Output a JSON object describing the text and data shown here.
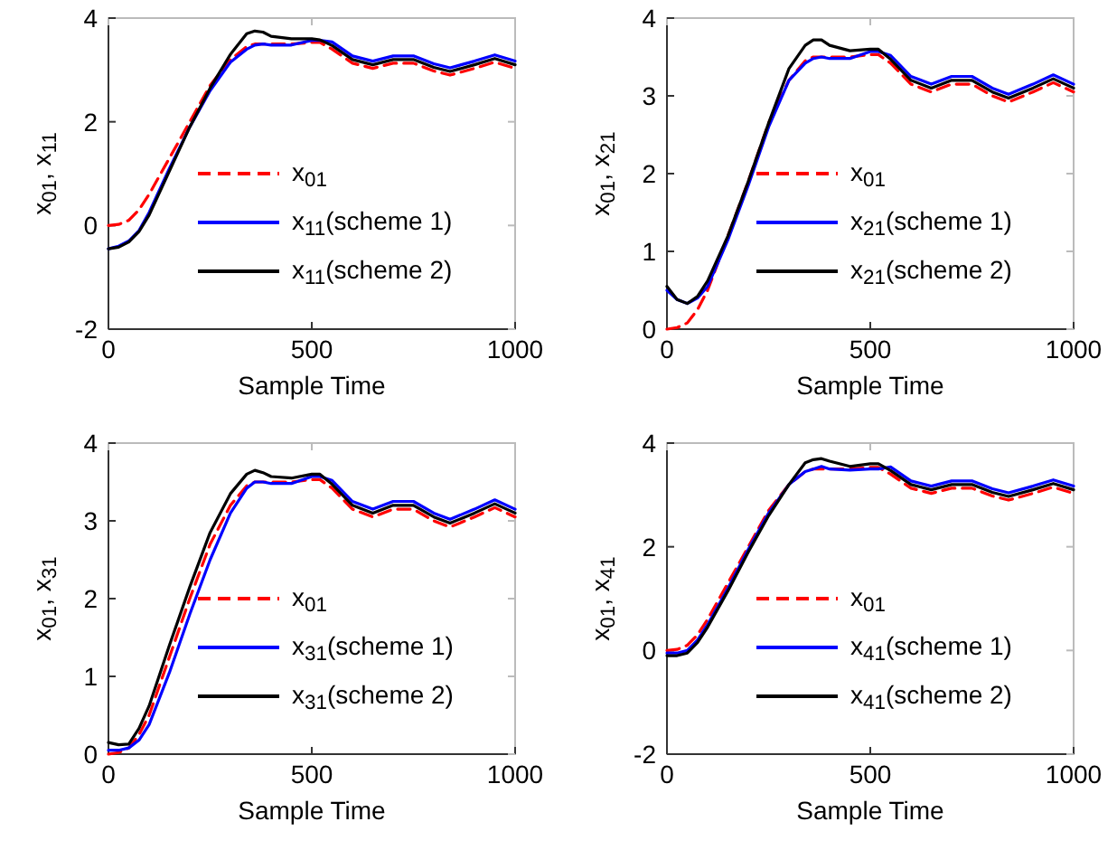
{
  "chart_data": [
    {
      "type": "line",
      "xlabel": "Sample Time",
      "ylabel": "x$_{01}$, x$_{11}$",
      "xlim": [
        0,
        1000
      ],
      "xticks": [
        0,
        500,
        1000
      ],
      "ylim": [
        -2,
        4
      ],
      "yticks": [
        -2,
        0,
        2,
        4
      ],
      "legend": "right",
      "grid": false,
      "x": [
        0,
        25,
        50,
        75,
        100,
        150,
        200,
        250,
        300,
        340,
        360,
        380,
        400,
        450,
        500,
        520,
        550,
        600,
        650,
        700,
        750,
        800,
        840,
        900,
        950,
        1000
      ],
      "series": [
        {
          "name": "x$_{01}$",
          "color": "#ff0000",
          "line_style": "dashed",
          "values": [
            0,
            0.02,
            0.1,
            0.3,
            0.6,
            1.3,
            2.0,
            2.7,
            3.2,
            3.45,
            3.5,
            3.5,
            3.5,
            3.5,
            3.53,
            3.53,
            3.4,
            3.13,
            3.03,
            3.13,
            3.13,
            2.98,
            2.9,
            3.03,
            3.15,
            3.03
          ]
        },
        {
          "name": "x$_{11}$(scheme 1)",
          "color": "#0000ff",
          "line_style": "solid",
          "values": [
            -0.45,
            -0.4,
            -0.3,
            -0.1,
            0.25,
            1.1,
            1.9,
            2.6,
            3.15,
            3.4,
            3.48,
            3.5,
            3.48,
            3.48,
            3.57,
            3.57,
            3.54,
            3.27,
            3.17,
            3.27,
            3.27,
            3.12,
            3.04,
            3.17,
            3.29,
            3.17
          ]
        },
        {
          "name": "x$_{11}$(scheme 2)",
          "color": "#000000",
          "line_style": "solid",
          "values": [
            -0.45,
            -0.42,
            -0.32,
            -0.12,
            0.2,
            1.05,
            1.9,
            2.65,
            3.3,
            3.7,
            3.75,
            3.73,
            3.65,
            3.6,
            3.6,
            3.58,
            3.47,
            3.2,
            3.1,
            3.2,
            3.2,
            3.05,
            2.97,
            3.1,
            3.22,
            3.1
          ]
        }
      ]
    },
    {
      "type": "line",
      "xlabel": "Sample Time",
      "ylabel": "x$_{01}$, x$_{21}$",
      "xlim": [
        0,
        1000
      ],
      "xticks": [
        0,
        500,
        1000
      ],
      "ylim": [
        0,
        4
      ],
      "yticks": [
        0,
        1,
        2,
        3,
        4
      ],
      "legend": "right",
      "grid": false,
      "x": [
        0,
        25,
        50,
        75,
        100,
        150,
        200,
        250,
        300,
        340,
        360,
        380,
        400,
        450,
        500,
        520,
        550,
        600,
        650,
        700,
        750,
        800,
        840,
        900,
        950,
        1000
      ],
      "series": [
        {
          "name": "x$_{01}$",
          "color": "#ff0000",
          "line_style": "dashed",
          "values": [
            0,
            0.02,
            0.08,
            0.25,
            0.5,
            1.2,
            1.9,
            2.65,
            3.2,
            3.45,
            3.5,
            3.5,
            3.5,
            3.5,
            3.53,
            3.53,
            3.42,
            3.15,
            3.05,
            3.15,
            3.15,
            3.0,
            2.92,
            3.05,
            3.17,
            3.05
          ]
        },
        {
          "name": "x$_{21}$(scheme 1)",
          "color": "#0000ff",
          "line_style": "solid",
          "values": [
            0.5,
            0.38,
            0.33,
            0.4,
            0.55,
            1.15,
            1.85,
            2.6,
            3.2,
            3.42,
            3.48,
            3.5,
            3.48,
            3.48,
            3.57,
            3.57,
            3.52,
            3.25,
            3.15,
            3.25,
            3.25,
            3.1,
            3.02,
            3.15,
            3.27,
            3.15
          ]
        },
        {
          "name": "x$_{21}$(scheme 2)",
          "color": "#000000",
          "line_style": "solid",
          "values": [
            0.55,
            0.38,
            0.33,
            0.42,
            0.62,
            1.2,
            1.9,
            2.65,
            3.35,
            3.65,
            3.72,
            3.72,
            3.65,
            3.58,
            3.6,
            3.6,
            3.47,
            3.2,
            3.1,
            3.2,
            3.2,
            3.05,
            2.97,
            3.1,
            3.22,
            3.1
          ]
        }
      ]
    },
    {
      "type": "line",
      "xlabel": "Sample Time",
      "ylabel": "x$_{01}$, x$_{31}$",
      "xlim": [
        0,
        1000
      ],
      "xticks": [
        0,
        500,
        1000
      ],
      "ylim": [
        0,
        4
      ],
      "yticks": [
        0,
        1,
        2,
        3,
        4
      ],
      "legend": "right",
      "grid": false,
      "x": [
        0,
        25,
        50,
        75,
        100,
        150,
        200,
        250,
        300,
        340,
        360,
        380,
        400,
        450,
        500,
        520,
        550,
        600,
        650,
        700,
        750,
        800,
        840,
        900,
        950,
        1000
      ],
      "series": [
        {
          "name": "x$_{01}$",
          "color": "#ff0000",
          "line_style": "dashed",
          "values": [
            0,
            0.02,
            0.08,
            0.25,
            0.5,
            1.25,
            2.0,
            2.7,
            3.2,
            3.45,
            3.5,
            3.5,
            3.5,
            3.5,
            3.53,
            3.53,
            3.42,
            3.15,
            3.05,
            3.15,
            3.15,
            3.0,
            2.92,
            3.05,
            3.17,
            3.05
          ]
        },
        {
          "name": "x$_{31}$(scheme 1)",
          "color": "#0000ff",
          "line_style": "solid",
          "values": [
            0.05,
            0.05,
            0.08,
            0.18,
            0.38,
            1.05,
            1.8,
            2.5,
            3.1,
            3.42,
            3.5,
            3.5,
            3.48,
            3.48,
            3.57,
            3.57,
            3.52,
            3.25,
            3.15,
            3.25,
            3.25,
            3.1,
            3.02,
            3.15,
            3.27,
            3.15
          ]
        },
        {
          "name": "x$_{31}$(scheme 2)",
          "color": "#000000",
          "line_style": "solid",
          "values": [
            0.15,
            0.12,
            0.13,
            0.33,
            0.62,
            1.4,
            2.15,
            2.85,
            3.35,
            3.6,
            3.65,
            3.62,
            3.57,
            3.55,
            3.6,
            3.6,
            3.47,
            3.2,
            3.1,
            3.2,
            3.2,
            3.05,
            2.97,
            3.1,
            3.22,
            3.1
          ]
        }
      ]
    },
    {
      "type": "line",
      "xlabel": "Sample Time",
      "ylabel": "x$_{01}$, x$_{41}$",
      "xlim": [
        0,
        1000
      ],
      "xticks": [
        0,
        500,
        1000
      ],
      "ylim": [
        -2,
        4
      ],
      "yticks": [
        -2,
        0,
        2,
        4
      ],
      "legend": "right",
      "grid": false,
      "x": [
        0,
        25,
        50,
        75,
        100,
        150,
        200,
        250,
        300,
        340,
        360,
        380,
        400,
        450,
        500,
        520,
        550,
        600,
        650,
        700,
        750,
        800,
        840,
        900,
        950,
        1000
      ],
      "series": [
        {
          "name": "x$_{01}$",
          "color": "#ff0000",
          "line_style": "dashed",
          "values": [
            0,
            0.02,
            0.1,
            0.3,
            0.6,
            1.3,
            2.0,
            2.7,
            3.2,
            3.45,
            3.5,
            3.5,
            3.5,
            3.5,
            3.53,
            3.53,
            3.4,
            3.13,
            3.03,
            3.13,
            3.13,
            2.98,
            2.9,
            3.03,
            3.15,
            3.03
          ]
        },
        {
          "name": "x$_{41}$(scheme 1)",
          "color": "#0000ff",
          "line_style": "solid",
          "values": [
            -0.05,
            -0.05,
            0.0,
            0.2,
            0.5,
            1.2,
            1.95,
            2.65,
            3.2,
            3.45,
            3.5,
            3.55,
            3.5,
            3.48,
            3.5,
            3.5,
            3.54,
            3.27,
            3.17,
            3.27,
            3.27,
            3.12,
            3.04,
            3.17,
            3.29,
            3.17
          ]
        },
        {
          "name": "x$_{41}$(scheme 2)",
          "color": "#000000",
          "line_style": "solid",
          "values": [
            -0.1,
            -0.1,
            -0.05,
            0.15,
            0.45,
            1.15,
            1.9,
            2.6,
            3.2,
            3.62,
            3.68,
            3.7,
            3.65,
            3.55,
            3.6,
            3.6,
            3.47,
            3.2,
            3.1,
            3.2,
            3.2,
            3.05,
            2.97,
            3.1,
            3.22,
            3.1
          ]
        }
      ]
    }
  ]
}
